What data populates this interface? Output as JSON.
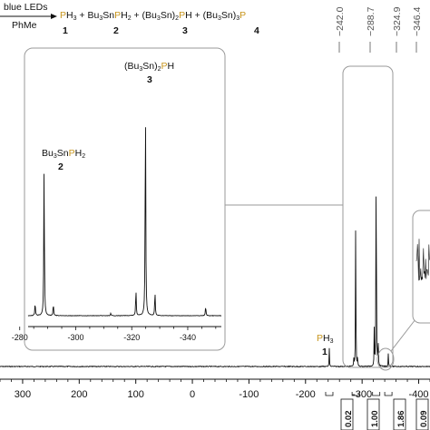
{
  "reaction": {
    "condition_top": "blue LEDs",
    "condition_bottom": "PhMe",
    "products": [
      {
        "number": "1"
      },
      {
        "number": "2"
      },
      {
        "number": "3"
      },
      {
        "number": "4"
      }
    ]
  },
  "colors": {
    "phosphorus_highlight": "#c8961e",
    "spectrum_line": "#111111",
    "inset_border": "#9a9a9a"
  },
  "chart_data": {
    "type": "line",
    "subtype": "31P NMR spectrum",
    "x_reversed": true,
    "main": {
      "xlim": [
        340,
        -420
      ],
      "xticks": [
        300,
        200,
        100,
        0,
        -100,
        -200,
        -300,
        -400
      ],
      "xtick_labels": [
        "300",
        "200",
        "100",
        "0",
        "-100",
        "-200",
        "-300",
        "-400"
      ],
      "peak_labels": [
        "−242.0",
        "−288.7",
        "−324.9",
        "−346.4"
      ],
      "peak_label_positions": [
        -242.0,
        -288.7,
        -324.9,
        -346.4
      ],
      "integrations": [
        "0.02",
        "1.00",
        "1.86",
        "0.09"
      ],
      "integration_positions": [
        -242.0,
        -288.7,
        -324.9,
        -346.4
      ],
      "peaks": [
        {
          "ppm": -242.0,
          "height": 0.06
        },
        {
          "ppm": -285.5,
          "height": 0.03
        },
        {
          "ppm": -288.7,
          "height": 0.55
        },
        {
          "ppm": -292.0,
          "height": 0.035
        },
        {
          "ppm": -321.5,
          "height": 0.13
        },
        {
          "ppm": -324.9,
          "height": 0.95
        },
        {
          "ppm": -328.3,
          "height": 0.12
        },
        {
          "ppm": -346.4,
          "height": 0.05
        }
      ],
      "annotations": [
        {
          "ppm": -242.0,
          "compound": "PH3",
          "number": "1"
        }
      ]
    },
    "inset_left": {
      "xlim": [
        -283,
        -352
      ],
      "xticks": [
        -280,
        -300,
        -320,
        -340
      ],
      "xtick_labels": [
        "-280",
        "-300",
        "-320",
        "-340"
      ],
      "peaks": [
        {
          "ppm": -285.5,
          "height": 0.06
        },
        {
          "ppm": -288.7,
          "height": 0.68
        },
        {
          "ppm": -292.0,
          "height": 0.055
        },
        {
          "ppm": -312.5,
          "height": 0.01
        },
        {
          "ppm": -321.5,
          "height": 0.12
        },
        {
          "ppm": -324.9,
          "height": 1.0
        },
        {
          "ppm": -328.3,
          "height": 0.11
        },
        {
          "ppm": -346.4,
          "height": 0.045
        }
      ],
      "annotations": [
        {
          "ppm": -288.7,
          "compound": "Bu3SnPH2",
          "number": "2"
        },
        {
          "ppm": -324.9,
          "compound": "(Bu3Sn)2PH",
          "number": "3"
        }
      ]
    }
  }
}
